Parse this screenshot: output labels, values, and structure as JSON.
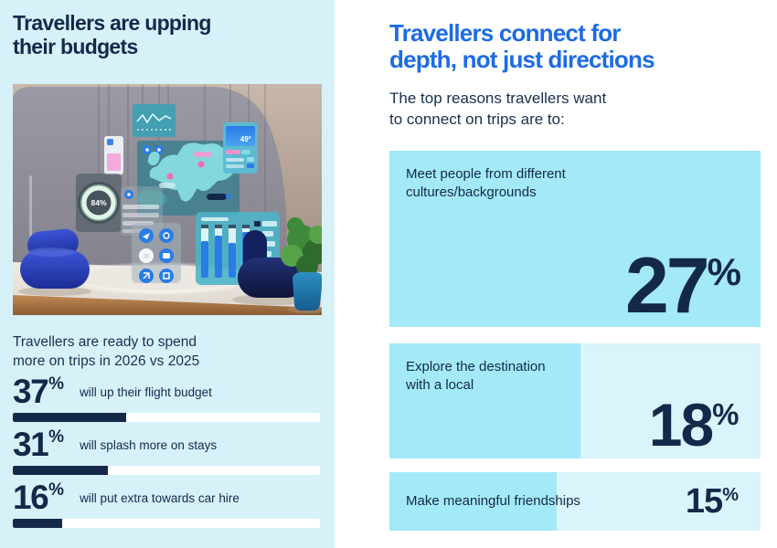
{
  "colors": {
    "accent_blue": "#1d6be6",
    "navy": "#14294a",
    "left_panel_bg": "#d7f1f9",
    "card_sky": "#a3e9f7",
    "card_light": "#d9f4fb",
    "bar_track": "#ffffff"
  },
  "left": {
    "heading_lines": [
      "Travellers are upping",
      "their budgets"
    ],
    "hero": {
      "gauge_value": "84%",
      "weather_temp": "49°"
    },
    "subheading_lines": [
      "Travellers are ready to spend",
      "more on trips in 2026 vs 2025"
    ],
    "stats": [
      {
        "value": "37",
        "pct": "%",
        "label": "will up their flight budget",
        "bar_pct": 37
      },
      {
        "value": "31",
        "pct": "%",
        "label": "will splash more on stays",
        "bar_pct": 31
      },
      {
        "value": "16",
        "pct": "%",
        "label": "will put extra towards car hire",
        "bar_pct": 16
      }
    ]
  },
  "right": {
    "heading_lines": [
      "Travellers connect for",
      "depth, not just directions"
    ],
    "subheading_lines": [
      "The top reasons travellers want",
      "to connect on trips are to:"
    ],
    "cards": [
      {
        "label_lines": [
          "Meet people from different",
          "cultures/backgrounds"
        ],
        "value": "27",
        "pct": "%"
      },
      {
        "label_lines": [
          "Explore the destination",
          "with a local"
        ],
        "value": "18",
        "pct": "%"
      },
      {
        "label_lines": [
          "Make meaningful friendships"
        ],
        "value": "15",
        "pct": "%"
      }
    ]
  },
  "chart_data": [
    {
      "type": "bar",
      "title": "Travellers are ready to spend more on trips in 2026 vs 2025",
      "categories": [
        "will up their flight budget",
        "will splash more on stays",
        "will put extra towards car hire"
      ],
      "values": [
        37,
        31,
        16
      ],
      "unit": "%",
      "xlim": [
        0,
        100
      ],
      "orientation": "horizontal",
      "grid": false,
      "legend": false
    },
    {
      "type": "bar",
      "title": "The top reasons travellers want to connect on trips are to:",
      "categories": [
        "Meet people from different cultures/backgrounds",
        "Explore the destination with a local",
        "Make meaningful friendships"
      ],
      "values": [
        27,
        18,
        15
      ],
      "unit": "%",
      "orientation": "horizontal",
      "grid": false,
      "legend": false
    }
  ]
}
